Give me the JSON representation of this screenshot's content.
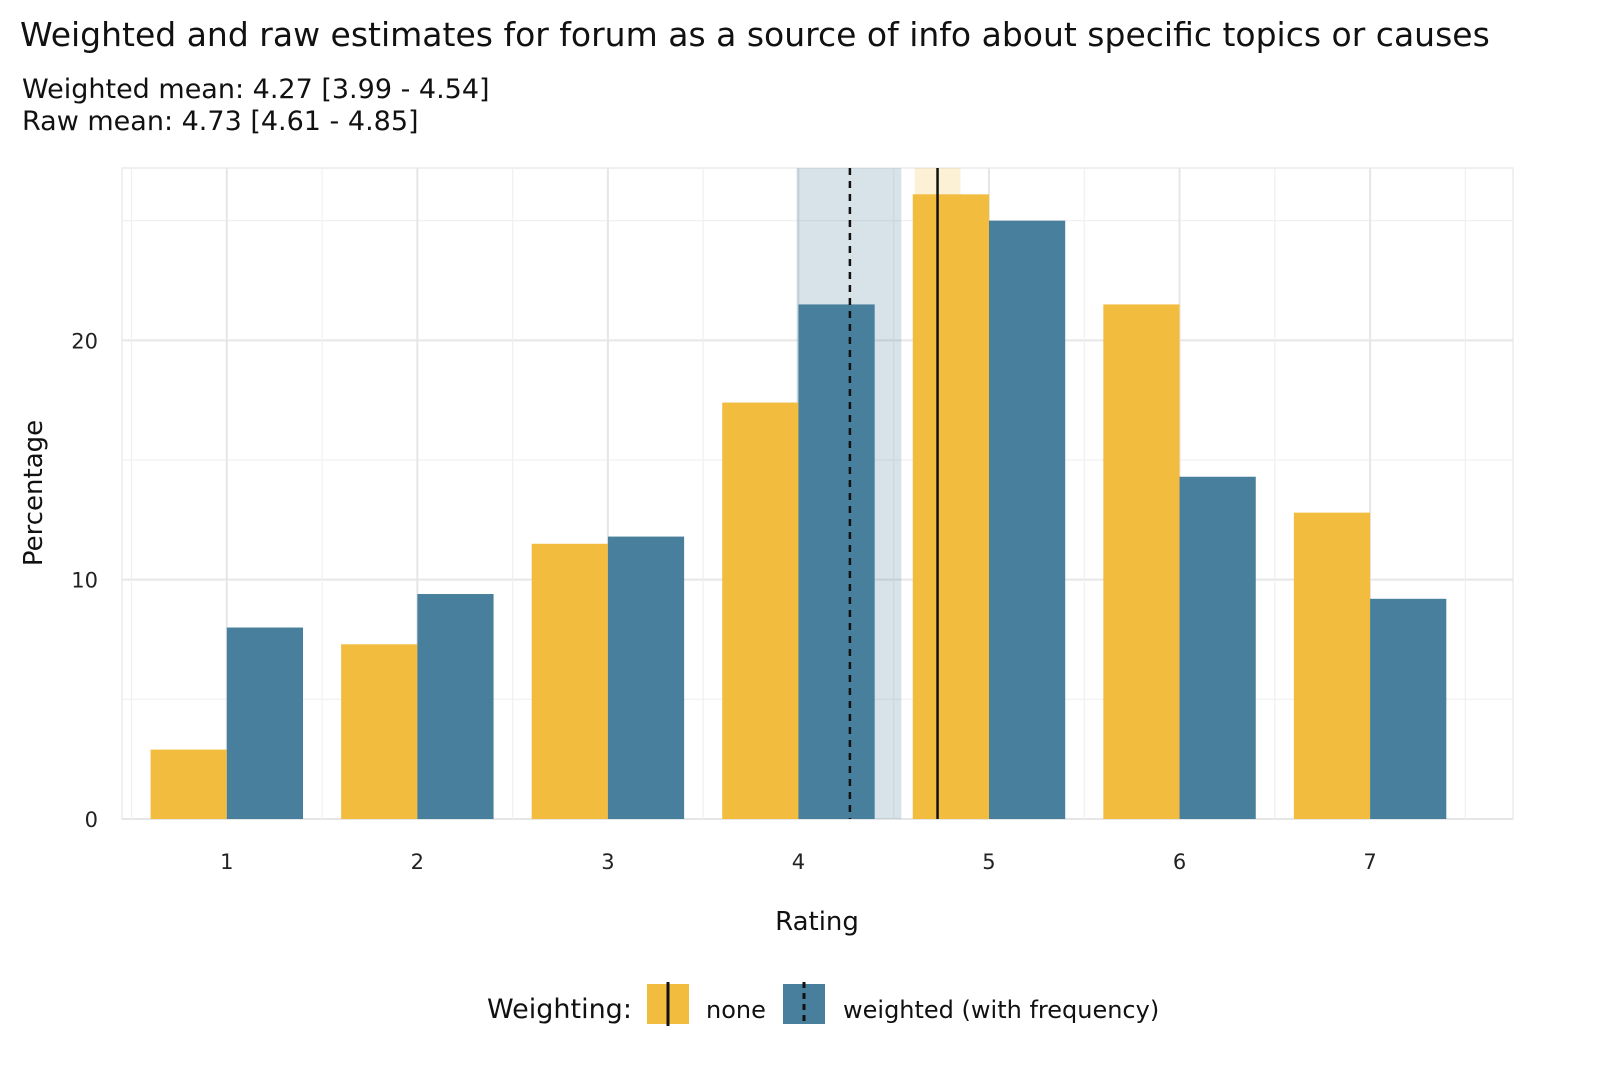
{
  "chart_data": {
    "type": "bar",
    "title": "Weighted and raw estimates for forum as a source of info about specific topics or causes",
    "subtitle_lines": [
      "Weighted mean: 4.27 [3.99 - 4.54]",
      "Raw mean: 4.73 [4.61 - 4.85]"
    ],
    "xlabel": "Rating",
    "ylabel": "Percentage",
    "categories": [
      1,
      2,
      3,
      4,
      5,
      6,
      7
    ],
    "xlim": [
      0.45,
      7.75
    ],
    "ylim": [
      0,
      27.2
    ],
    "y_ticks": [
      0,
      10,
      20
    ],
    "grid": true,
    "legend": {
      "position": "bottom",
      "title": "Weighting:",
      "items": [
        "none",
        "weighted (with frequency)"
      ]
    },
    "series": [
      {
        "name": "none",
        "color": "#F2BC3F",
        "values": [
          2.9,
          7.3,
          11.5,
          17.4,
          26.1,
          21.5,
          12.8
        ],
        "mean": 4.73,
        "ci": [
          4.61,
          4.85
        ],
        "line_style": "solid"
      },
      {
        "name": "weighted (with frequency)",
        "color": "#477F9C",
        "values": [
          8.0,
          9.4,
          11.8,
          21.5,
          25.0,
          14.3,
          9.2
        ],
        "mean": 4.27,
        "ci": [
          3.99,
          4.54
        ],
        "line_style": "dashed"
      }
    ]
  }
}
